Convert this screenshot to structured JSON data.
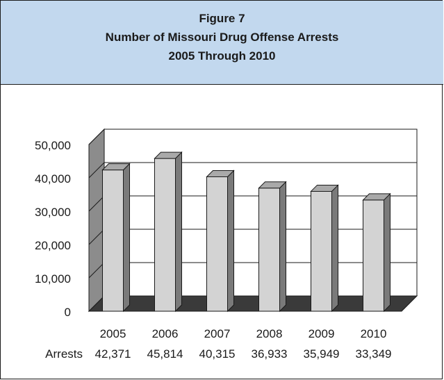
{
  "figure": {
    "label": "Figure 7",
    "title": "Number of Missouri Drug Offense Arrests",
    "subtitle": "2005 Through 2010"
  },
  "colors": {
    "title_background": "#c2d8ee",
    "bar_front": "#d3d3d3",
    "bar_side": "#7a7a7a",
    "bar_top": "#a9a9a9",
    "floor": "#3a3a3a",
    "left_wall": "#8c8c8c"
  },
  "chart_data": {
    "type": "bar",
    "title": "Number of Missouri Drug Offense Arrests",
    "subtitle": "2005 Through 2010",
    "categories": [
      "2005",
      "2006",
      "2007",
      "2008",
      "2009",
      "2010"
    ],
    "values": [
      42371,
      45814,
      40315,
      36933,
      35949,
      33349
    ],
    "value_labels": [
      "42,371",
      "45,814",
      "40,315",
      "36,933",
      "35,949",
      "33,349"
    ],
    "row_label": "Arrests",
    "y_ticks": [
      "0",
      "10,000",
      "20,000",
      "30,000",
      "40,000",
      "50,000"
    ],
    "ylim": [
      0,
      50000
    ],
    "grid": true,
    "legend": "none",
    "style": "3d-column"
  }
}
